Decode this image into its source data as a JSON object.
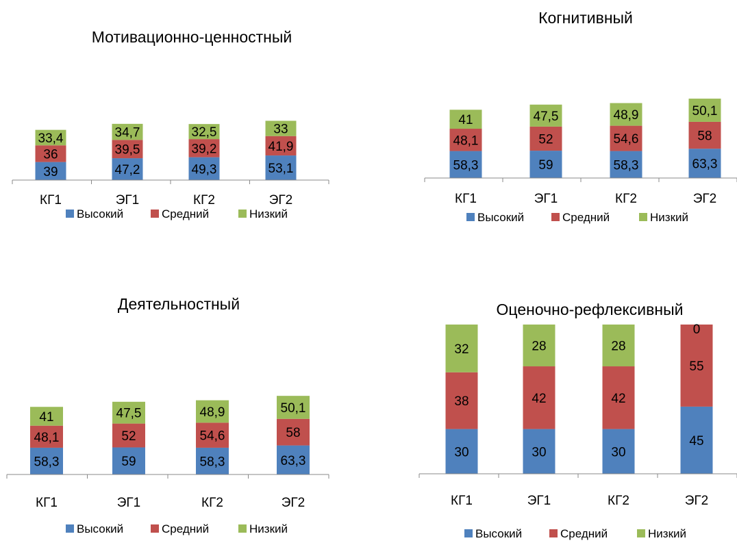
{
  "colors": {
    "high": "#4F81BD",
    "medium": "#C0504D",
    "low": "#9BBB59",
    "axis": "#888888"
  },
  "chart_data": [
    {
      "type": "bar",
      "stacked": true,
      "title": "Мотивационно-ценностный",
      "categories": [
        "КГ1",
        "ЭГ1",
        "КГ2",
        "ЭГ2"
      ],
      "series": [
        {
          "name": "Высокий",
          "values": [
            39,
            47.2,
            49.3,
            53.1
          ],
          "labels": [
            "39",
            "47,2",
            "49,3",
            "53,1"
          ]
        },
        {
          "name": "Средний",
          "values": [
            36,
            39.5,
            39.2,
            41.9
          ],
          "labels": [
            "36",
            "39,5",
            "39,2",
            "41,9"
          ]
        },
        {
          "name": "Низкий",
          "values": [
            33.4,
            34.7,
            32.5,
            33
          ],
          "labels": [
            "33,4",
            "34,7",
            "32,5",
            "33"
          ]
        }
      ],
      "legend": "bottom"
    },
    {
      "type": "bar",
      "stacked": true,
      "title": "Когнитивный",
      "categories": [
        "КГ1",
        "ЭГ1",
        "КГ2",
        "ЭГ2"
      ],
      "series": [
        {
          "name": "Высокий",
          "values": [
            58.3,
            59,
            58.3,
            63.3
          ],
          "labels": [
            "58,3",
            "59",
            "58,3",
            "63,3"
          ]
        },
        {
          "name": "Средний",
          "values": [
            48.1,
            52,
            54.6,
            58
          ],
          "labels": [
            "48,1",
            "52",
            "54,6",
            "58"
          ]
        },
        {
          "name": "Низкий",
          "values": [
            41,
            47.5,
            48.9,
            50.1
          ],
          "labels": [
            "41",
            "47,5",
            "48,9",
            "50,1"
          ]
        }
      ],
      "legend": "bottom"
    },
    {
      "type": "bar",
      "stacked": true,
      "title": "Деятельностный",
      "categories": [
        "КГ1",
        "ЭГ1",
        "КГ2",
        "ЭГ2"
      ],
      "series": [
        {
          "name": "Высокий",
          "values": [
            58.3,
            59,
            58.3,
            63.3
          ],
          "labels": [
            "58,3",
            "59",
            "58,3",
            "63,3"
          ]
        },
        {
          "name": "Средний",
          "values": [
            48.1,
            52,
            54.6,
            58
          ],
          "labels": [
            "48,1",
            "52",
            "54,6",
            "58"
          ]
        },
        {
          "name": "Низкий",
          "values": [
            41,
            47.5,
            48.9,
            50.1
          ],
          "labels": [
            "41",
            "47,5",
            "48,9",
            "50,1"
          ]
        }
      ],
      "legend": "bottom"
    },
    {
      "type": "bar",
      "stacked": true,
      "title": "Оценочно-рефлексивный",
      "categories": [
        "КГ1",
        "ЭГ1",
        "КГ2",
        "ЭГ2"
      ],
      "series": [
        {
          "name": "Высокий",
          "values": [
            30,
            30,
            30,
            45
          ],
          "labels": [
            "30",
            "30",
            "30",
            "45"
          ]
        },
        {
          "name": "Средний",
          "values": [
            38,
            42,
            42,
            55
          ],
          "labels": [
            "38",
            "42",
            "42",
            "55"
          ]
        },
        {
          "name": "Низкий",
          "values": [
            32,
            28,
            28,
            0
          ],
          "labels": [
            "32",
            "28",
            "28",
            "0"
          ]
        }
      ],
      "legend": "bottom"
    }
  ]
}
